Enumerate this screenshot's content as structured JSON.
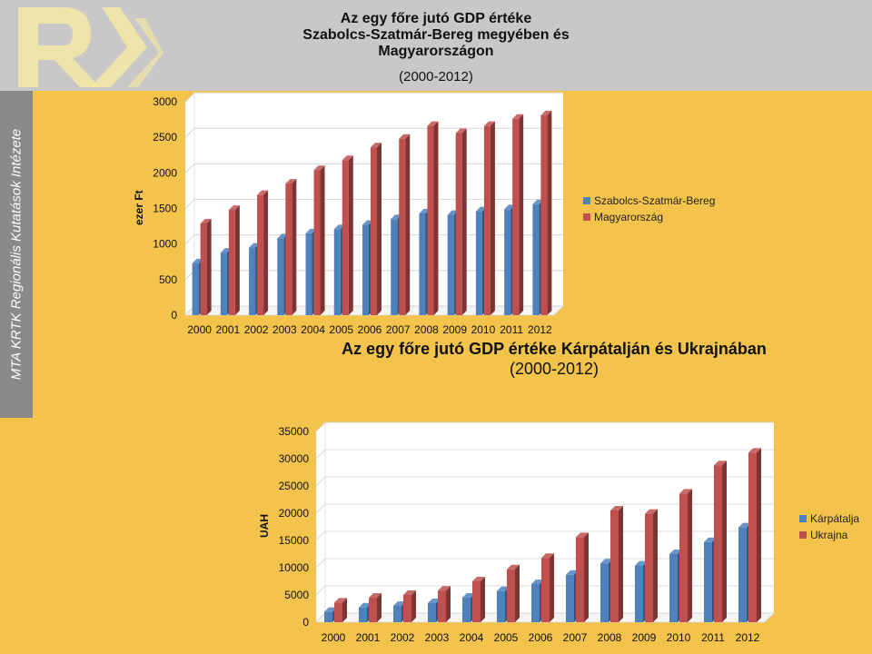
{
  "branding": {
    "vertical_label": "MTA KRTK Regionális Kutatások Intézete",
    "logo_icon": "rk-logo-icon"
  },
  "colors": {
    "blue": "#4f81bd",
    "red": "#c0504d",
    "header_bg": "#c8c8c8",
    "sidebar_bg": "#8a8a8a",
    "page_bg": "#f3c34b"
  },
  "chart_data": [
    {
      "type": "bar",
      "title_line1": "Az egy főre jutó GDP értéke",
      "title_line2": "Szabolcs-Szatmár-Bereg megyében és Magyarországon",
      "title_line3": "(2000-2012)",
      "ylabel": "ezer Ft",
      "xlabel": "",
      "ylim": [
        0,
        3000
      ],
      "yticks": [
        0,
        500,
        1000,
        1500,
        2000,
        2500,
        3000
      ],
      "categories": [
        "2000",
        "2001",
        "2002",
        "2003",
        "2004",
        "2005",
        "2006",
        "2007",
        "2008",
        "2009",
        "2010",
        "2011",
        "2012"
      ],
      "series": [
        {
          "name": "Szabolcs-Szatmár-Bereg",
          "color": "#4f81bd",
          "values": [
            730,
            880,
            950,
            1080,
            1150,
            1210,
            1270,
            1350,
            1430,
            1410,
            1460,
            1490,
            1560
          ]
        },
        {
          "name": "Magyarország",
          "color": "#c0504d",
          "values": [
            1290,
            1480,
            1690,
            1850,
            2040,
            2180,
            2360,
            2480,
            2660,
            2560,
            2660,
            2760,
            2810
          ]
        }
      ],
      "legend_position": "right"
    },
    {
      "type": "bar",
      "title_line1": "Az egy főre jutó GDP értéke Kárpátalján és Ukrajnában",
      "title_line2": "(2000-2012)",
      "ylabel": "UAH",
      "xlabel": "",
      "ylim": [
        0,
        35000
      ],
      "yticks": [
        0,
        5000,
        10000,
        15000,
        20000,
        25000,
        30000,
        35000
      ],
      "categories": [
        "2000",
        "2001",
        "2002",
        "2003",
        "2004",
        "2005",
        "2006",
        "2007",
        "2008",
        "2009",
        "2010",
        "2011",
        "2012"
      ],
      "series": [
        {
          "name": "Kárpátalja",
          "color": "#4f81bd",
          "values": [
            1900,
            2700,
            3000,
            3500,
            4500,
            5700,
            7000,
            8700,
            10800,
            10400,
            12500,
            14700,
            17400
          ]
        },
        {
          "name": "Ukrajna",
          "color": "#c0504d",
          "values": [
            3600,
            4500,
            5000,
            5800,
            7500,
            9700,
            11800,
            15600,
            20500,
            19900,
            23600,
            28800,
            31100
          ]
        }
      ],
      "legend_position": "right"
    }
  ]
}
